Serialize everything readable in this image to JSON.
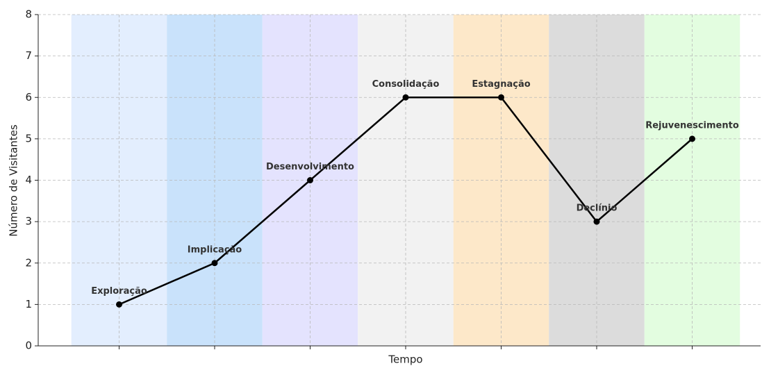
{
  "chart_data": {
    "type": "line",
    "xlabel": "Tempo",
    "ylabel": "Número de Visitantes",
    "categories": [
      null,
      null,
      null,
      null,
      null,
      null,
      null
    ],
    "point_labels": [
      "Exploração",
      "Implicação",
      "Desenvolvimento",
      "Consolidação",
      "Estagnação",
      "Declínio",
      "Rejuvenescimento"
    ],
    "values": [
      1,
      2,
      4,
      6,
      6,
      3,
      5
    ],
    "color": "#000000",
    "band_colors": [
      "#e3eefe",
      "#c9e2fb",
      "#e4e3fe",
      "#f2f2f2",
      "#fde8c9",
      "#dcdcdc",
      "#e3fde0"
    ],
    "ylim": [
      0,
      8
    ],
    "yticks": [
      0,
      1,
      2,
      3,
      4,
      5,
      6,
      7,
      8
    ],
    "grid": true
  }
}
